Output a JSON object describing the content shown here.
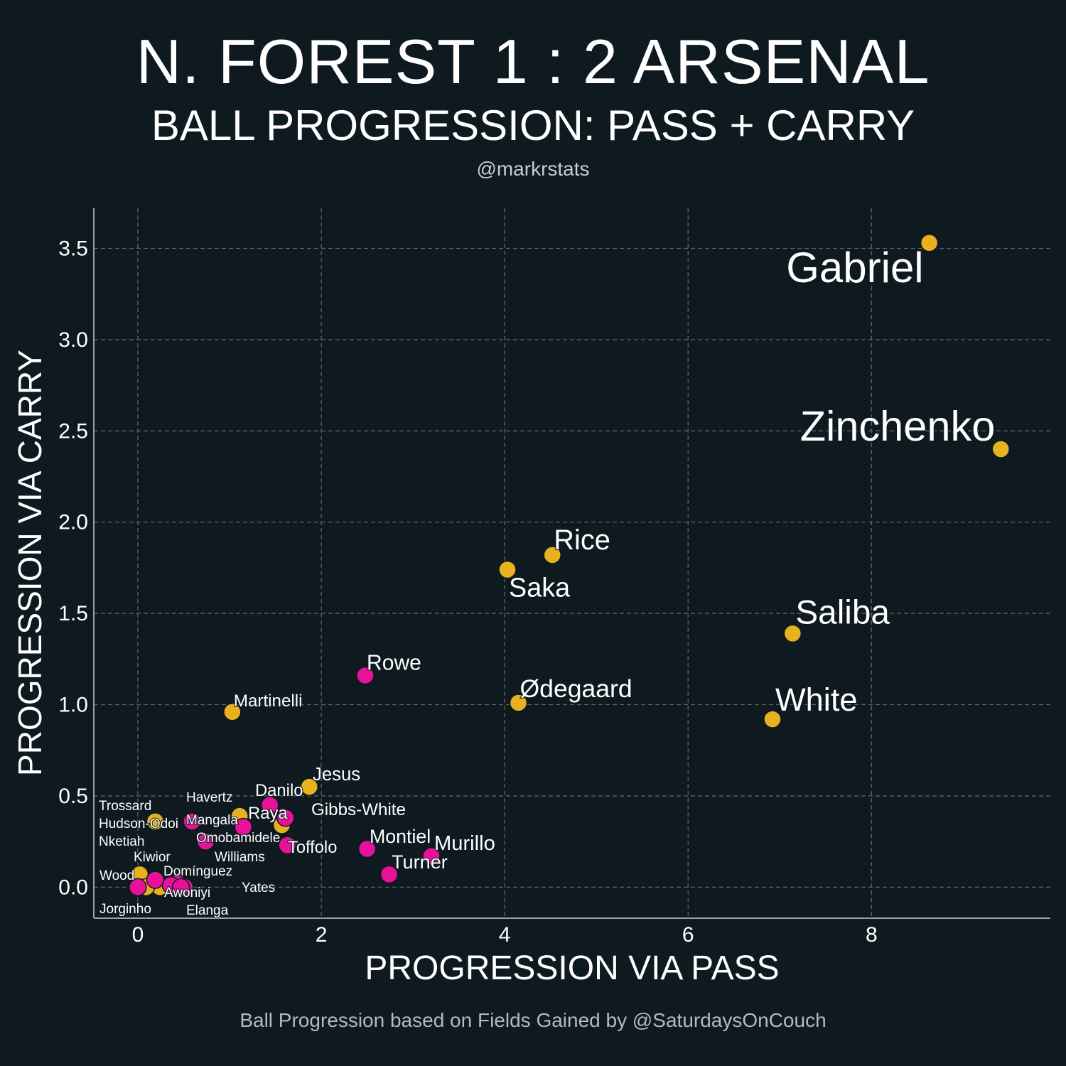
{
  "header": {
    "title": "N. FOREST 1 : 2 ARSENAL",
    "subtitle": "BALL PROGRESSION: PASS + CARRY",
    "handle": "@markrstats"
  },
  "footer": {
    "caption": "Ball Progression based on Fields Gained by @SaturdaysOnCouch"
  },
  "colors": {
    "background": "#0e1920",
    "Arsenal": "#e8b21f",
    "N. Forest": "#e8129a",
    "grid": "#5a636a"
  },
  "chart_data": {
    "type": "scatter",
    "xlabel": "PROGRESSION VIA PASS",
    "ylabel": "PROGRESSION VIA CARRY",
    "xlim": [
      -0.48,
      9.95
    ],
    "ylim": [
      -0.17,
      3.72
    ],
    "xticks": [
      0,
      2,
      4,
      6,
      8
    ],
    "xtick_labels": [
      "0",
      "2",
      "4",
      "6",
      "8"
    ],
    "yticks": [
      0,
      0.5,
      1,
      1.5,
      2,
      2.5,
      3,
      3.5
    ],
    "ytick_labels": [
      "0.0",
      "0.5",
      "1.0",
      "1.5",
      "2.0",
      "2.5",
      "3.0",
      "3.5"
    ],
    "grid": true,
    "series": [
      {
        "name": "Arsenal",
        "points": [
          {
            "label": "Gabriel",
            "x": 8.63,
            "y": 3.53
          },
          {
            "label": "Zinchenko",
            "x": 9.41,
            "y": 2.4
          },
          {
            "label": "Rice",
            "x": 4.52,
            "y": 1.82
          },
          {
            "label": "Saka",
            "x": 4.03,
            "y": 1.74
          },
          {
            "label": "Saliba",
            "x": 7.14,
            "y": 1.39
          },
          {
            "label": "Ødegaard",
            "x": 4.15,
            "y": 1.01
          },
          {
            "label": "White",
            "x": 6.92,
            "y": 0.92
          },
          {
            "label": "Martinelli",
            "x": 1.03,
            "y": 0.96
          },
          {
            "label": "Jesus",
            "x": 1.87,
            "y": 0.55
          },
          {
            "label": "Havertz",
            "x": 1.11,
            "y": 0.39
          },
          {
            "label": "Trossard",
            "x": 0.19,
            "y": 0.36
          },
          {
            "label": "Raya",
            "x": 1.57,
            "y": 0.34
          },
          {
            "label": "Nketiah",
            "x": 0.24,
            "y": 0.0
          },
          {
            "label": "Kiwior",
            "x": 0.02,
            "y": 0.07
          },
          {
            "label": "Jorginho",
            "x": 0.09,
            "y": 0.0
          }
        ]
      },
      {
        "name": "N. Forest",
        "points": [
          {
            "label": "Rowe",
            "x": 2.48,
            "y": 1.16
          },
          {
            "label": "Danilo",
            "x": 1.44,
            "y": 0.45
          },
          {
            "label": "Gibbs-White",
            "x": 1.61,
            "y": 0.38
          },
          {
            "label": "Mangala",
            "x": 0.59,
            "y": 0.36
          },
          {
            "label": "Omobamidele",
            "x": 1.15,
            "y": 0.33
          },
          {
            "label": "Hudson-Odoi",
            "x": 0.74,
            "y": 0.25
          },
          {
            "label": "Toffolo",
            "x": 1.63,
            "y": 0.23
          },
          {
            "label": "Montiel",
            "x": 2.5,
            "y": 0.21
          },
          {
            "label": "Murillo",
            "x": 3.2,
            "y": 0.17
          },
          {
            "label": "Turner",
            "x": 2.74,
            "y": 0.07
          },
          {
            "label": "Wood",
            "x": 0.0,
            "y": 0.0
          },
          {
            "label": "Domínguez",
            "x": 0.19,
            "y": 0.04
          },
          {
            "label": "Williams",
            "x": 0.43,
            "y": 0.02
          },
          {
            "label": "Awoniyi",
            "x": 0.51,
            "y": 0.0
          },
          {
            "label": "Yates",
            "x": 0.36,
            "y": 0.01
          },
          {
            "label": "Elanga",
            "x": 0.47,
            "y": 0.0
          }
        ]
      }
    ]
  }
}
